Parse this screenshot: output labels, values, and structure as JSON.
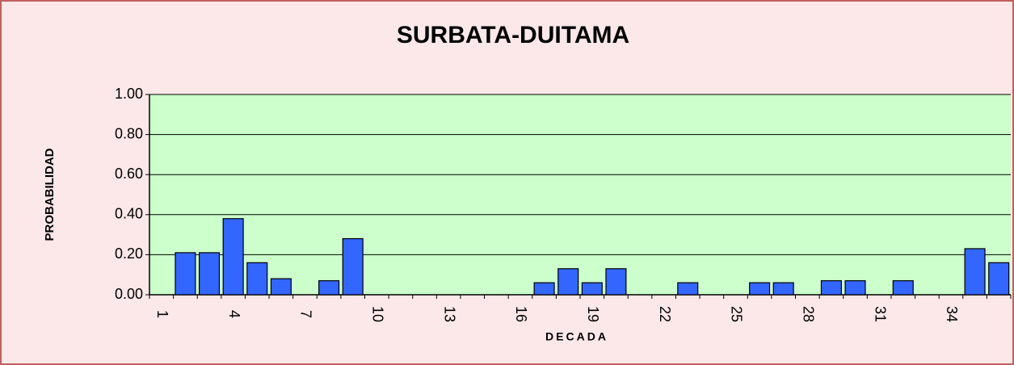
{
  "chart_data": {
    "type": "bar",
    "title": "SURBATA-DUITAMA",
    "x_label": "DECADA",
    "y_label": "PROBABILIDAD",
    "categories": [
      "1",
      null,
      null,
      "4",
      null,
      null,
      "7",
      null,
      null,
      "10",
      null,
      null,
      "13",
      null,
      null,
      "16",
      null,
      null,
      "19",
      null,
      null,
      "22",
      null,
      null,
      "25",
      null,
      null,
      "28",
      null,
      null,
      "31",
      null,
      null,
      "34",
      null,
      null
    ],
    "values": [
      0,
      0.21,
      0.21,
      0.38,
      0.16,
      0.08,
      0,
      0.07,
      0.28,
      0,
      0,
      0,
      0,
      0,
      0,
      0,
      0.06,
      0.13,
      0.06,
      0.13,
      0,
      0,
      0.06,
      0,
      0,
      0.06,
      0.06,
      0,
      0.07,
      0.07,
      0,
      0.07,
      0,
      0,
      0.23,
      0.16
    ],
    "color": "#3366ff",
    "ylim": [
      0,
      1
    ],
    "yticks": [
      {
        "value": 0,
        "label": "0.00"
      },
      {
        "value": 0.2,
        "label": "0.20"
      },
      {
        "value": 0.4,
        "label": "0.40"
      },
      {
        "value": 0.6,
        "label": "0.60"
      },
      {
        "value": 0.8,
        "label": "0.80"
      },
      {
        "value": 1,
        "label": "1.00"
      }
    ],
    "grid": true
  }
}
